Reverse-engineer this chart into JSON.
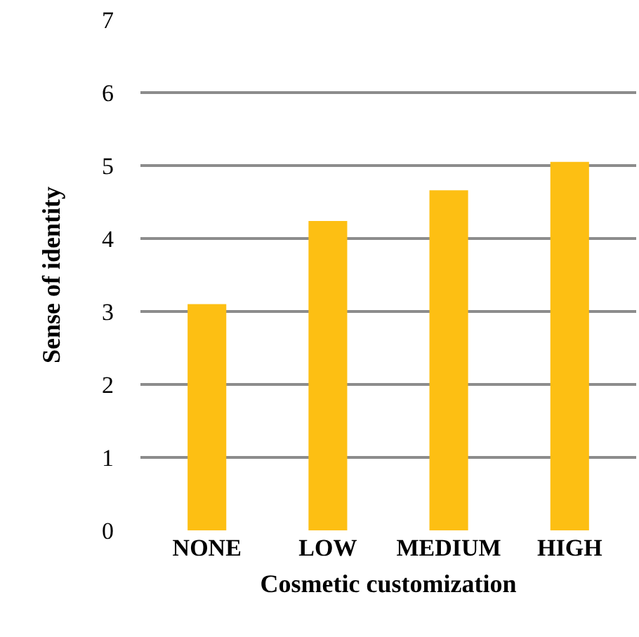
{
  "chart_data": {
    "type": "bar",
    "xlabel": "Cosmetic customization",
    "ylabel": "Sense of identity",
    "categories": [
      "NONE",
      "LOW",
      "MEDIUM",
      "HIGH"
    ],
    "values": [
      3.1,
      4.24,
      4.66,
      5.05
    ],
    "color": "#fdbf13",
    "ylim": [
      0,
      7
    ],
    "yticks": [
      0,
      1,
      2,
      3,
      4,
      5,
      6,
      7
    ],
    "grid": "y"
  }
}
